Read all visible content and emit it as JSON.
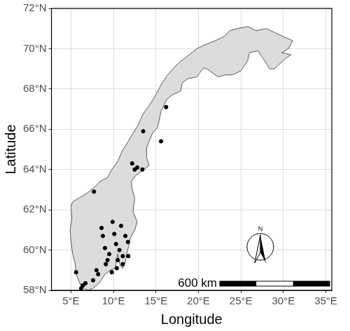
{
  "chart_data": {
    "type": "scatter",
    "x_label": "Longitude",
    "y_label": "Latitude",
    "xlim": [
      2.7,
      35.7
    ],
    "ylim": [
      58,
      72
    ],
    "xticks": [
      {
        "value": 5,
        "label": "5°E"
      },
      {
        "value": 10,
        "label": "10°E"
      },
      {
        "value": 15,
        "label": "15°E"
      },
      {
        "value": 20,
        "label": "20°E"
      },
      {
        "value": 25,
        "label": "25°E"
      },
      {
        "value": 30,
        "label": "30°E"
      },
      {
        "value": 35,
        "label": "35°E"
      }
    ],
    "yticks": [
      {
        "value": 58,
        "label": "58°N"
      },
      {
        "value": 60,
        "label": "60°N"
      },
      {
        "value": 62,
        "label": "62°N"
      },
      {
        "value": 64,
        "label": "64°N"
      },
      {
        "value": 66,
        "label": "66°N"
      },
      {
        "value": 68,
        "label": "68°N"
      },
      {
        "value": 70,
        "label": "70°N"
      },
      {
        "value": 72,
        "label": "72°N"
      }
    ],
    "grid": true,
    "outline": {
      "color": "#dcdcdc",
      "lon": [
        7.0,
        6.2,
        5.6,
        5.5,
        5.2,
        5.0,
        4.9,
        5.1,
        5.0,
        5.2,
        6.0,
        6.8,
        7.7,
        8.4,
        9.3,
        9.8,
        10.5,
        11.0,
        11.6,
        12.3,
        12.9,
        13.4,
        14.4,
        15.1,
        15.6,
        16.2,
        17.0,
        17.7,
        18.9,
        19.8,
        20.8,
        22.0,
        23.0,
        23.7,
        24.6,
        25.8,
        26.8,
        28.0,
        29.0,
        30.0,
        31.1,
        30.6,
        29.8,
        30.9,
        30.2,
        29.2,
        28.9,
        28.4,
        27.0,
        26.0,
        25.8,
        25.0,
        24.0,
        23.2,
        22.3,
        21.0,
        20.6,
        19.8,
        18.7,
        18.1,
        17.9,
        16.9,
        16.3,
        15.6,
        15.2,
        14.6,
        14.3,
        13.9,
        13.9,
        14.2,
        13.6,
        12.6,
        12.1,
        12.2,
        12.5,
        12.3,
        12.8,
        12.5,
        12.0,
        11.8,
        11.6,
        11.4,
        11.1,
        10.8,
        10.5,
        10.2,
        9.6,
        9.0,
        8.4,
        7.6,
        7.0
      ],
      "lat": [
        58.0,
        58.2,
        58.8,
        59.3,
        59.8,
        60.4,
        61.0,
        61.6,
        62.2,
        62.4,
        62.6,
        62.8,
        63.1,
        63.4,
        63.6,
        64.0,
        64.4,
        64.9,
        65.3,
        65.8,
        66.2,
        66.7,
        67.3,
        67.8,
        68.2,
        68.6,
        69.0,
        69.3,
        69.7,
        70.0,
        70.2,
        70.4,
        70.6,
        70.9,
        71.0,
        71.1,
        70.9,
        71.0,
        70.8,
        70.6,
        70.4,
        70.0,
        69.8,
        69.7,
        69.5,
        69.1,
        69.0,
        69.0,
        69.9,
        69.8,
        69.4,
        68.9,
        68.7,
        68.7,
        68.6,
        69.0,
        69.05,
        68.6,
        68.5,
        68.3,
        67.9,
        67.7,
        67.5,
        66.9,
        66.1,
        65.8,
        65.5,
        65.1,
        64.6,
        64.2,
        64.0,
        63.7,
        63.4,
        63.0,
        62.6,
        61.9,
        61.4,
        61.0,
        60.6,
        60.2,
        59.9,
        59.4,
        59.1,
        59.2,
        59.8,
        59.1,
        59.0,
        58.8,
        58.4,
        58.1,
        58.0
      ]
    },
    "series": [
      {
        "color": "#000000",
        "marker": "circle",
        "x": [
          16.2,
          13.5,
          15.6,
          12.2,
          12.5,
          12.8,
          13.4,
          7.7,
          8.6,
          8.75,
          9.0,
          9.5,
          9.1,
          10.1,
          10.3,
          10.7,
          11.4,
          11.7,
          11.1,
          11.75,
          11.1,
          10.4,
          9.8,
          8.2,
          7.6,
          6.7,
          6.4,
          6.2,
          5.6,
          10.9,
          9.9,
          9.3,
          10.5,
          8.0
        ],
        "y": [
          67.1,
          65.9,
          65.4,
          64.3,
          64.0,
          64.1,
          64.0,
          62.9,
          61.1,
          60.7,
          60.1,
          59.8,
          59.3,
          60.8,
          60.3,
          60.0,
          60.7,
          60.4,
          59.7,
          59.7,
          59.3,
          59.1,
          58.9,
          58.8,
          58.5,
          58.35,
          58.25,
          58.1,
          58.9,
          61.2,
          61.4,
          59.5,
          59.5,
          59.0
        ]
      }
    ],
    "scale_bar_label": "600 km",
    "north_arrow_label": "N"
  }
}
